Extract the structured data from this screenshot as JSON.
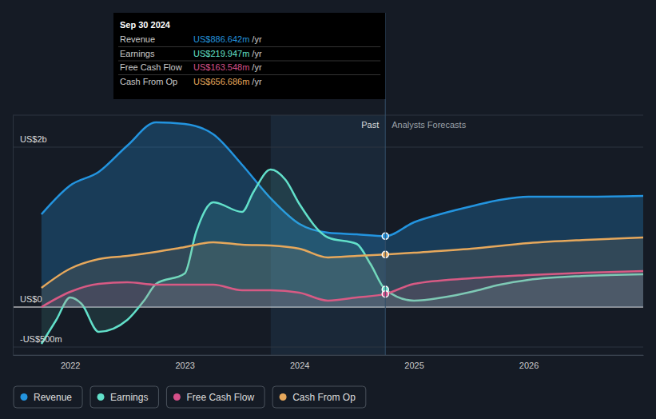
{
  "chart_data": {
    "type": "line",
    "xlim": [
      2021.5,
      2027
    ],
    "xticks": [
      2022,
      2023,
      2024,
      2025,
      2026
    ],
    "ylim": [
      -600,
      2400
    ],
    "yticks": [
      {
        "value": 2000,
        "label": "US$2b"
      },
      {
        "value": 0,
        "label": "US$0"
      },
      {
        "value": -500,
        "label": "-US$500m"
      }
    ],
    "grid": true,
    "legend": "bottom",
    "highlight": [
      2023.75,
      2024.75
    ],
    "forecast_split": {
      "x": 2024.75,
      "past_label": "Past",
      "forecast_label": "Analysts Forecasts"
    },
    "series": [
      {
        "name": "Revenue",
        "color": "#2394df",
        "x": [
          2021.75,
          2022.0,
          2022.25,
          2022.5,
          2022.75,
          2023.0,
          2023.25,
          2023.5,
          2023.75,
          2024.0,
          2024.25,
          2024.5,
          2024.75,
          2025.0,
          2025.25,
          2025.5,
          2025.75,
          2026.0,
          2026.5,
          2027.0
        ],
        "values": [
          1160,
          1520,
          1690,
          2020,
          2310,
          2290,
          2160,
          1780,
          1360,
          1040,
          930,
          910,
          886.642,
          1060,
          1170,
          1260,
          1340,
          1380,
          1380,
          1390
        ]
      },
      {
        "name": "Earnings",
        "color": "#62e0ca",
        "x": [
          2021.75,
          2021.88,
          2022.0,
          2022.1,
          2022.25,
          2022.5,
          2022.65,
          2022.75,
          2023.0,
          2023.1,
          2023.25,
          2023.5,
          2023.6,
          2023.75,
          2023.88,
          2024.0,
          2024.25,
          2024.5,
          2024.62,
          2024.75,
          2025.0,
          2025.25,
          2025.5,
          2025.75,
          2026.0,
          2026.5,
          2027.0
        ],
        "values": [
          -460,
          -160,
          120,
          40,
          -310,
          -160,
          90,
          290,
          420,
          940,
          1310,
          1190,
          1440,
          1720,
          1590,
          1290,
          870,
          790,
          540,
          219.947,
          80,
          120,
          190,
          280,
          340,
          390,
          410
        ]
      },
      {
        "name": "Free Cash Flow",
        "color": "#d6508a",
        "x": [
          2021.75,
          2022.0,
          2022.25,
          2022.5,
          2022.75,
          2023.0,
          2023.25,
          2023.5,
          2023.75,
          2024.0,
          2024.25,
          2024.5,
          2024.75,
          2025.0,
          2025.5,
          2026.0,
          2026.5,
          2027.0
        ],
        "values": [
          0,
          190,
          290,
          310,
          280,
          280,
          280,
          210,
          210,
          180,
          80,
          120,
          163.548,
          290,
          360,
          400,
          430,
          450
        ]
      },
      {
        "name": "Cash From Op",
        "color": "#e6a85c",
        "x": [
          2021.75,
          2022.0,
          2022.25,
          2022.5,
          2022.75,
          2023.0,
          2023.25,
          2023.5,
          2023.75,
          2024.0,
          2024.25,
          2024.5,
          2024.75,
          2025.0,
          2025.5,
          2026.0,
          2026.5,
          2027.0
        ],
        "values": [
          240,
          480,
          600,
          640,
          690,
          750,
          810,
          780,
          770,
          730,
          620,
          640,
          656.686,
          680,
          730,
          800,
          840,
          870
        ]
      }
    ],
    "tooltip": {
      "title": "Sep 30 2024",
      "items": [
        {
          "name": "Revenue",
          "text": "US$886.642m",
          "unit": "/yr"
        },
        {
          "name": "Earnings",
          "text": "US$219.947m",
          "unit": "/yr"
        },
        {
          "name": "Free Cash Flow",
          "text": "US$163.548m",
          "unit": "/yr"
        },
        {
          "name": "Cash From Op",
          "text": "US$656.686m",
          "unit": "/yr"
        }
      ]
    }
  }
}
